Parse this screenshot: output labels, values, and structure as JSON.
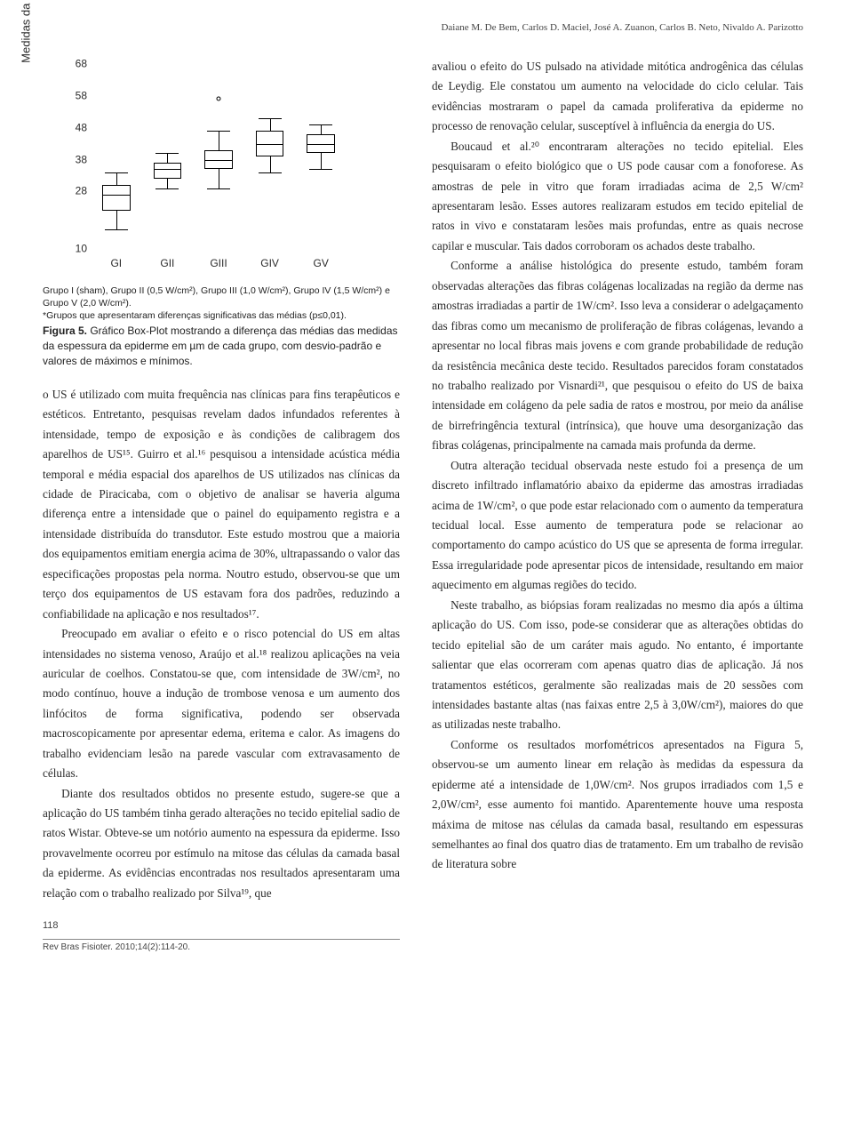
{
  "header": {
    "authors": "Daiane M. De Bem, Carlos D. Maciel, José A. Zuanon, Carlos B. Neto, Nivaldo A. Parizotto"
  },
  "figure": {
    "y_label": "Medidas da Espessura da Epiderme em µm",
    "y_ticks": [
      10,
      28,
      38,
      48,
      58,
      68
    ],
    "y_min": 10,
    "y_max": 68,
    "x_labels": [
      "GI",
      "GII",
      "GIII",
      "GIV",
      "GV"
    ],
    "boxes": [
      {
        "q1": 22,
        "median": 27,
        "q3": 30,
        "low": 16,
        "high": 34,
        "outliers": []
      },
      {
        "q1": 32,
        "median": 35,
        "q3": 37,
        "low": 29,
        "high": 40,
        "outliers": []
      },
      {
        "q1": 35,
        "median": 38,
        "q3": 41,
        "low": 29,
        "high": 47,
        "outliers": [
          57
        ]
      },
      {
        "q1": 39,
        "median": 43,
        "q3": 47,
        "low": 34,
        "high": 51,
        "outliers": []
      },
      {
        "q1": 40,
        "median": 43,
        "q3": 46,
        "low": 35,
        "high": 49,
        "outliers": []
      }
    ],
    "box_width_ratio": 0.55,
    "cap_width_ratio": 0.45,
    "colors": {
      "box_border": "#000000",
      "box_fill": "#ffffff",
      "axis_text": "#000000",
      "background": "#ffffff"
    },
    "caption_groups": "Grupo I (sham), Grupo II (0,5 W/cm²), Grupo III (1,0 W/cm²), Grupo IV (1,5 W/cm²) e Grupo V (2,0 W/cm²).",
    "caption_note": "*Grupos que apresentaram diferenças significativas das médias (p≤0,01).",
    "title_label": "Figura 5.",
    "title_text": " Gráfico Box-Plot mostrando a diferença das médias das medidas da espessura da epiderme em µm de cada grupo, com desvio-padrão e valores de máximos e mínimos."
  },
  "left_body": [
    "o US é utilizado com muita frequência nas clínicas para fins terapêuticos e estéticos. Entretanto, pesquisas revelam dados infundados referentes à intensidade, tempo de exposição e às condições de calibragem dos aparelhos de US¹⁵. Guirro et al.¹⁶ pesquisou a intensidade acústica média temporal e média espacial dos aparelhos de US utilizados nas clínicas da cidade de Piracicaba, com o objetivo de analisar se haveria alguma diferença entre a intensidade que o painel do equipamento registra e a intensidade distribuída do transdutor. Este estudo mostrou que a maioria dos equipamentos emitiam energia acima de 30%, ultrapassando o valor das especificações propostas pela norma. Noutro estudo, observou-se que um terço dos equipamentos de US estavam fora dos padrões, reduzindo a confiabilidade na aplicação e nos resultados¹⁷.",
    "Preocupado em avaliar o efeito e o risco potencial do US em altas intensidades no sistema venoso, Araújo et al.¹⁸ realizou aplicações na veia auricular de coelhos. Constatou-se que, com intensidade de 3W/cm², no modo contínuo, houve a indução de trombose venosa e um aumento dos linfócitos de forma significativa, podendo ser observada macroscopicamente por apresentar edema, eritema e calor. As imagens do trabalho evidenciam lesão na parede vascular com extravasamento de células.",
    "Diante dos resultados obtidos no presente estudo, sugere-se que a aplicação do US também tinha gerado alterações no tecido epitelial sadio de ratos Wistar. Obteve-se um notório aumento na espessura da epiderme. Isso provavelmente ocorreu por estímulo na mitose das células da camada basal da epiderme. As evidências encontradas nos resultados apresentaram uma relação com o trabalho realizado por Silva¹⁹, que"
  ],
  "right_body": [
    "avaliou o efeito do US pulsado na atividade mitótica androgênica das células de Leydig. Ele constatou um aumento na velocidade do ciclo celular. Tais evidências mostraram o papel da camada proliferativa da epiderme no processo de renovação celular, susceptível à influência da energia do US.",
    "Boucaud et al.²⁰ encontraram alterações no tecido epitelial. Eles pesquisaram o efeito biológico que o US pode causar com a fonoforese. As amostras de pele in vitro que foram irradiadas acima de 2,5 W/cm² apresentaram lesão. Esses autores realizaram estudos em tecido epitelial de ratos in vivo e constataram lesões mais profundas, entre as quais necrose capilar e muscular. Tais dados corroboram os achados deste trabalho.",
    "Conforme a análise histológica do presente estudo, também foram observadas alterações das fibras colágenas localizadas na região da derme nas amostras irradiadas a partir de 1W/cm². Isso leva a considerar o adelgaçamento das fibras como um mecanismo de proliferação de fibras colágenas, levando a apresentar no local fibras mais jovens e com grande probabilidade de redução da resistência mecânica deste tecido. Resultados parecidos foram constatados no trabalho realizado por Visnardi²¹, que pesquisou o efeito do US de baixa intensidade em colágeno da pele sadia de ratos e mostrou, por meio da análise de birrefringência textural (intrínsica), que houve uma desorganização das fibras colágenas, principalmente na camada mais profunda da derme.",
    "Outra alteração tecidual observada neste estudo foi a presença de um discreto infiltrado inflamatório abaixo da epiderme das amostras irradiadas acima de 1W/cm², o que pode estar relacionado com o aumento da temperatura tecidual local. Esse aumento de temperatura pode se relacionar ao comportamento do campo acústico do US que se apresenta de forma irregular. Essa irregularidade pode apresentar picos de intensidade, resultando em maior aquecimento em algumas regiões do tecido.",
    "Neste trabalho, as biópsias foram realizadas no mesmo dia após a última aplicação do US. Com isso, pode-se considerar que as alterações obtidas do tecido epitelial são de um caráter mais agudo. No entanto, é importante salientar que elas ocorreram com apenas quatro dias de aplicação. Já nos tratamentos estéticos, geralmente são realizadas mais de 20 sessões com intensidades bastante altas (nas faixas entre 2,5 à 3,0W/cm²), maiores do que as utilizadas neste trabalho.",
    "Conforme os resultados morfométricos apresentados na Figura 5, observou-se um aumento linear em relação às medidas da espessura da epiderme até a intensidade de 1,0W/cm². Nos grupos irradiados com 1,5 e 2,0W/cm², esse aumento foi mantido. Aparentemente houve uma resposta máxima de mitose nas células da camada basal, resultando em espessuras semelhantes ao final dos quatro dias de tratamento. Em um trabalho de revisão de literatura sobre"
  ],
  "footer": {
    "page": "118",
    "cite": "Rev Bras Fisioter. 2010;14(2):114-20."
  }
}
